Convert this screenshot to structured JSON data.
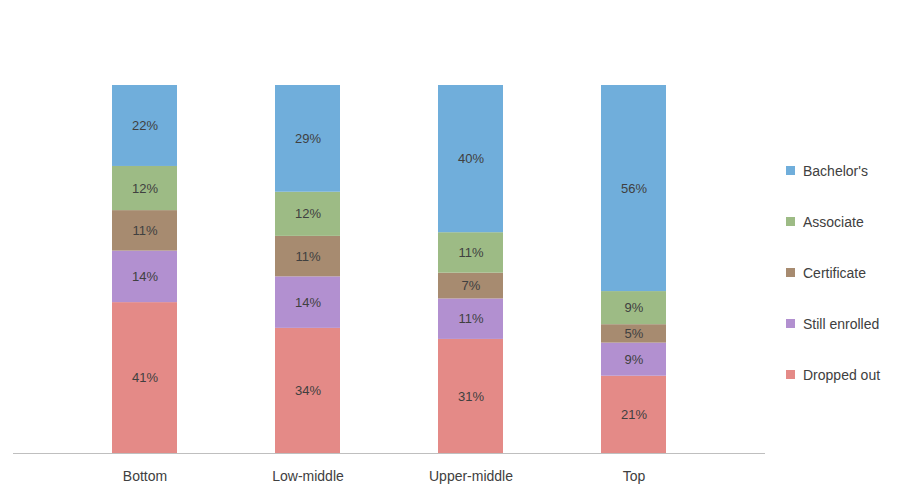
{
  "chart_data": {
    "type": "bar",
    "stacked": true,
    "data_labels": true,
    "tick_labels": "x",
    "legend": "right",
    "categories": [
      "Bottom",
      "Low-middle",
      "Upper-middle",
      "Top"
    ],
    "ylim": [
      0,
      100
    ],
    "yticks": [],
    "series": [
      {
        "name": "Bachelor's",
        "color": "#70AEDB",
        "values": [
          22,
          29,
          40,
          56
        ],
        "value_labels": [
          "22%",
          "29%",
          "40%",
          "56%"
        ]
      },
      {
        "name": "Associate",
        "color": "#9DBB85",
        "values": [
          12,
          12,
          11,
          9
        ],
        "value_labels": [
          "12%",
          "12%",
          "11%",
          "9%"
        ]
      },
      {
        "name": "Certificate",
        "color": "#A78B70",
        "values": [
          11,
          11,
          7,
          5
        ],
        "value_labels": [
          "11%",
          "11%",
          "7%",
          "5%"
        ]
      },
      {
        "name": "Still enrolled",
        "color": "#B290D0",
        "values": [
          14,
          14,
          11,
          9
        ],
        "value_labels": [
          "14%",
          "14%",
          "11%",
          "9%"
        ]
      },
      {
        "name": "Dropped out",
        "color": "#E48A87",
        "values": [
          41,
          34,
          31,
          21
        ],
        "value_labels": [
          "41%",
          "34%",
          "31%",
          "21%"
        ]
      }
    ]
  }
}
